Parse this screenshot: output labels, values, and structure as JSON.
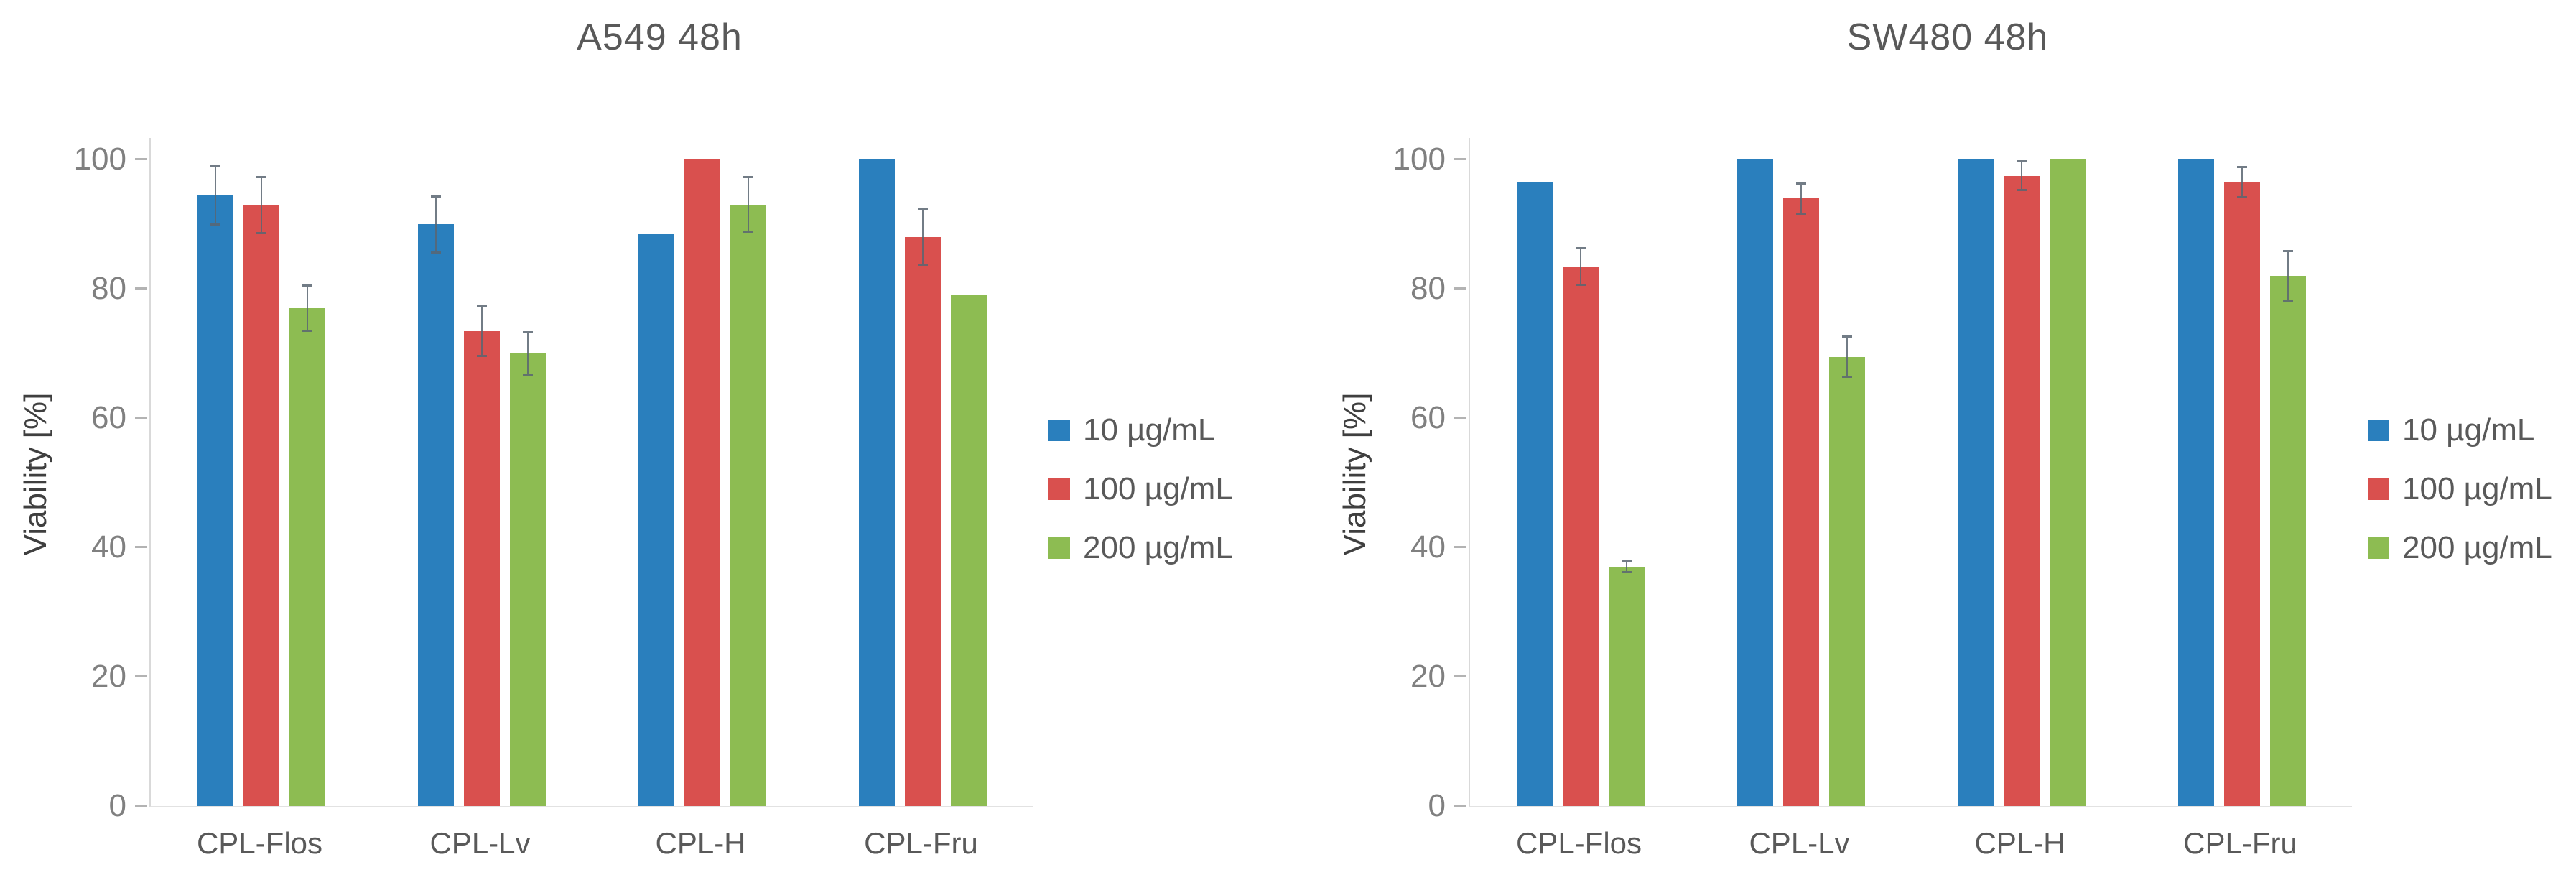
{
  "figure": {
    "background": "#ffffff",
    "text_color": "#595959",
    "axis_line_color": "#d9d9d9",
    "tick_color": "#808080"
  },
  "chart_data": [
    {
      "type": "bar",
      "title": "A549 48h",
      "ylabel": "Viability [%]",
      "xlabel": "",
      "ylim": [
        0,
        100
      ],
      "y_ticks": [
        0,
        20,
        40,
        60,
        80,
        100
      ],
      "grid": false,
      "legend_position": "right",
      "categories": [
        "CPL-Flos",
        "CPL-Lv",
        "CPL-H",
        "CPL-Fru"
      ],
      "series": [
        {
          "name": "10 µg/mL",
          "color": "#2a7fbd",
          "values": [
            94.5,
            90,
            88.5,
            100
          ],
          "errors": [
            4.7,
            4.5,
            0,
            0
          ]
        },
        {
          "name": "100 µg/mL",
          "color": "#d9504e",
          "values": [
            93,
            73.5,
            100,
            88
          ],
          "errors": [
            4.5,
            4.0,
            0,
            4.4
          ]
        },
        {
          "name": "200 µg/mL",
          "color": "#8dbc52",
          "values": [
            77,
            70,
            93,
            79
          ],
          "errors": [
            3.7,
            3.4,
            4.4,
            0
          ]
        }
      ]
    },
    {
      "type": "bar",
      "title": "SW480 48h",
      "ylabel": "Viability [%]",
      "xlabel": "",
      "ylim": [
        0,
        100
      ],
      "y_ticks": [
        0,
        20,
        40,
        60,
        80,
        100
      ],
      "grid": false,
      "legend_position": "right",
      "categories": [
        "CPL-Flos",
        "CPL-Lv",
        "CPL-H",
        "CPL-Fru"
      ],
      "series": [
        {
          "name": "10 µg/mL",
          "color": "#2a7fbd",
          "values": [
            96.5,
            100,
            100,
            100
          ],
          "errors": [
            0,
            0,
            0,
            0
          ]
        },
        {
          "name": "100 µg/mL",
          "color": "#d9504e",
          "values": [
            83.5,
            94,
            97.5,
            96.5
          ],
          "errors": [
            3.0,
            2.5,
            2.4,
            2.5
          ]
        },
        {
          "name": "200 µg/mL",
          "color": "#8dbc52",
          "values": [
            37,
            69.5,
            100,
            82
          ],
          "errors": [
            1.0,
            3.3,
            0,
            4.0
          ]
        }
      ]
    }
  ]
}
